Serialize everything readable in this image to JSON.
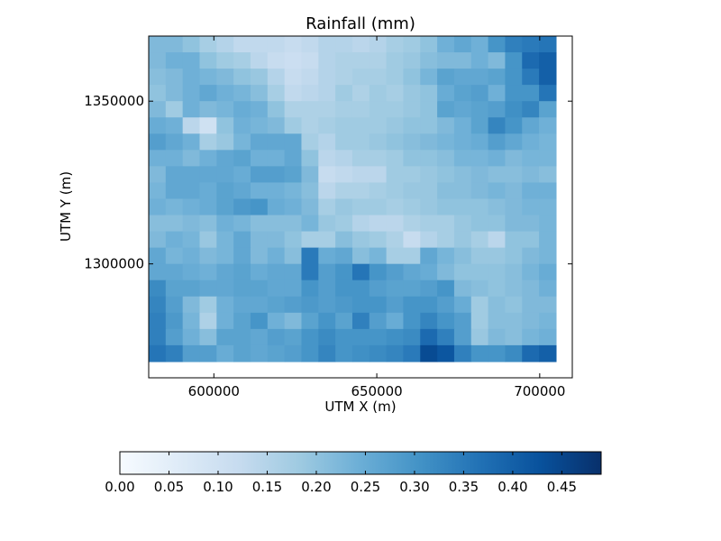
{
  "chart_data": {
    "type": "heatmap",
    "title": "Rainfall (mm)",
    "xlabel": "UTM X (m)",
    "ylabel": "UTM Y (m)",
    "xlim": [
      580000,
      710000
    ],
    "ylim": [
      1265000,
      1370000
    ],
    "grid_extent": {
      "x": [
        580000,
        705000
      ],
      "y": [
        1270000,
        1370000
      ]
    },
    "x_ticks": [
      600000,
      650000,
      700000
    ],
    "x_tick_labels": [
      "600000",
      "650000",
      "700000"
    ],
    "y_ticks": [
      1300000,
      1350000
    ],
    "y_tick_labels": [
      "1300000",
      "1350000"
    ],
    "colorbar": {
      "orientation": "horizontal",
      "min": 0.0,
      "max": 0.49,
      "ticks": [
        0.0,
        0.05,
        0.1,
        0.15,
        0.2,
        0.25,
        0.3,
        0.35,
        0.4,
        0.45
      ],
      "tick_labels": [
        "0.00",
        "0.05",
        "0.10",
        "0.15",
        "0.20",
        "0.25",
        "0.30",
        "0.35",
        "0.40",
        "0.45"
      ],
      "colormap": "Blues"
    },
    "grid": false,
    "rows_top_to_bottom": [
      [
        0.22,
        0.22,
        0.2,
        0.17,
        0.15,
        0.13,
        0.13,
        0.13,
        0.12,
        0.13,
        0.15,
        0.15,
        0.14,
        0.15,
        0.17,
        0.18,
        0.2,
        0.24,
        0.26,
        0.24,
        0.3,
        0.34,
        0.35,
        0.36
      ],
      [
        0.22,
        0.24,
        0.24,
        0.2,
        0.18,
        0.17,
        0.14,
        0.12,
        0.11,
        0.12,
        0.15,
        0.16,
        0.16,
        0.16,
        0.18,
        0.19,
        0.21,
        0.22,
        0.22,
        0.24,
        0.22,
        0.3,
        0.38,
        0.4
      ],
      [
        0.21,
        0.22,
        0.24,
        0.23,
        0.22,
        0.2,
        0.19,
        0.15,
        0.12,
        0.13,
        0.15,
        0.16,
        0.17,
        0.17,
        0.18,
        0.2,
        0.23,
        0.27,
        0.26,
        0.26,
        0.27,
        0.3,
        0.35,
        0.4
      ],
      [
        0.2,
        0.22,
        0.24,
        0.26,
        0.24,
        0.23,
        0.21,
        0.17,
        0.13,
        0.14,
        0.15,
        0.18,
        0.16,
        0.18,
        0.17,
        0.19,
        0.2,
        0.25,
        0.27,
        0.28,
        0.24,
        0.3,
        0.3,
        0.36
      ],
      [
        0.22,
        0.18,
        0.24,
        0.22,
        0.23,
        0.25,
        0.24,
        0.2,
        0.16,
        0.16,
        0.16,
        0.17,
        0.17,
        0.18,
        0.18,
        0.19,
        0.2,
        0.27,
        0.26,
        0.27,
        0.28,
        0.31,
        0.33,
        0.27
      ],
      [
        0.25,
        0.24,
        0.14,
        0.1,
        0.2,
        0.24,
        0.23,
        0.22,
        0.18,
        0.16,
        0.17,
        0.18,
        0.18,
        0.18,
        0.19,
        0.2,
        0.2,
        0.22,
        0.24,
        0.27,
        0.33,
        0.3,
        0.26,
        0.24
      ],
      [
        0.28,
        0.26,
        0.24,
        0.17,
        0.19,
        0.23,
        0.26,
        0.26,
        0.26,
        0.17,
        0.15,
        0.18,
        0.18,
        0.19,
        0.2,
        0.21,
        0.22,
        0.23,
        0.24,
        0.25,
        0.28,
        0.26,
        0.24,
        0.23
      ],
      [
        0.24,
        0.24,
        0.22,
        0.24,
        0.26,
        0.27,
        0.24,
        0.24,
        0.26,
        0.2,
        0.14,
        0.15,
        0.17,
        0.17,
        0.18,
        0.2,
        0.2,
        0.21,
        0.23,
        0.23,
        0.24,
        0.22,
        0.23,
        0.23
      ],
      [
        0.22,
        0.26,
        0.26,
        0.26,
        0.26,
        0.25,
        0.28,
        0.28,
        0.27,
        0.22,
        0.12,
        0.13,
        0.14,
        0.14,
        0.18,
        0.18,
        0.19,
        0.2,
        0.21,
        0.22,
        0.21,
        0.21,
        0.22,
        0.21
      ],
      [
        0.23,
        0.26,
        0.26,
        0.25,
        0.27,
        0.26,
        0.24,
        0.24,
        0.23,
        0.21,
        0.14,
        0.16,
        0.16,
        0.17,
        0.18,
        0.19,
        0.19,
        0.21,
        0.21,
        0.22,
        0.23,
        0.22,
        0.24,
        0.24
      ],
      [
        0.24,
        0.23,
        0.24,
        0.25,
        0.27,
        0.29,
        0.3,
        0.25,
        0.24,
        0.22,
        0.17,
        0.19,
        0.18,
        0.18,
        0.17,
        0.18,
        0.19,
        0.2,
        0.2,
        0.2,
        0.21,
        0.22,
        0.23,
        0.23
      ],
      [
        0.21,
        0.21,
        0.22,
        0.21,
        0.24,
        0.23,
        0.21,
        0.21,
        0.21,
        0.23,
        0.19,
        0.18,
        0.15,
        0.14,
        0.14,
        0.16,
        0.17,
        0.17,
        0.19,
        0.2,
        0.2,
        0.22,
        0.22,
        0.23
      ],
      [
        0.22,
        0.24,
        0.23,
        0.19,
        0.23,
        0.26,
        0.22,
        0.22,
        0.2,
        0.17,
        0.17,
        0.21,
        0.19,
        0.18,
        0.16,
        0.12,
        0.15,
        0.17,
        0.19,
        0.17,
        0.14,
        0.2,
        0.2,
        0.23
      ],
      [
        0.26,
        0.23,
        0.24,
        0.22,
        0.23,
        0.26,
        0.22,
        0.24,
        0.21,
        0.35,
        0.25,
        0.26,
        0.21,
        0.23,
        0.17,
        0.17,
        0.26,
        0.23,
        0.21,
        0.19,
        0.19,
        0.2,
        0.22,
        0.23
      ],
      [
        0.26,
        0.26,
        0.25,
        0.24,
        0.26,
        0.27,
        0.25,
        0.26,
        0.26,
        0.35,
        0.28,
        0.3,
        0.36,
        0.3,
        0.28,
        0.26,
        0.25,
        0.22,
        0.2,
        0.2,
        0.2,
        0.21,
        0.23,
        0.25
      ],
      [
        0.32,
        0.27,
        0.27,
        0.26,
        0.26,
        0.27,
        0.27,
        0.26,
        0.26,
        0.3,
        0.28,
        0.3,
        0.3,
        0.28,
        0.27,
        0.27,
        0.28,
        0.3,
        0.22,
        0.21,
        0.2,
        0.21,
        0.22,
        0.24
      ],
      [
        0.33,
        0.28,
        0.22,
        0.18,
        0.24,
        0.26,
        0.26,
        0.27,
        0.28,
        0.29,
        0.28,
        0.29,
        0.3,
        0.3,
        0.28,
        0.3,
        0.3,
        0.28,
        0.25,
        0.18,
        0.21,
        0.2,
        0.22,
        0.22
      ],
      [
        0.34,
        0.29,
        0.23,
        0.16,
        0.24,
        0.27,
        0.3,
        0.24,
        0.22,
        0.27,
        0.3,
        0.27,
        0.34,
        0.28,
        0.25,
        0.3,
        0.33,
        0.3,
        0.28,
        0.18,
        0.21,
        0.21,
        0.22,
        0.23
      ],
      [
        0.34,
        0.28,
        0.24,
        0.21,
        0.27,
        0.27,
        0.26,
        0.28,
        0.27,
        0.3,
        0.32,
        0.3,
        0.3,
        0.3,
        0.31,
        0.32,
        0.38,
        0.34,
        0.28,
        0.19,
        0.22,
        0.21,
        0.23,
        0.24
      ],
      [
        0.36,
        0.34,
        0.28,
        0.28,
        0.25,
        0.27,
        0.26,
        0.27,
        0.28,
        0.3,
        0.33,
        0.3,
        0.31,
        0.32,
        0.33,
        0.35,
        0.44,
        0.42,
        0.34,
        0.3,
        0.3,
        0.32,
        0.38,
        0.4
      ]
    ]
  }
}
